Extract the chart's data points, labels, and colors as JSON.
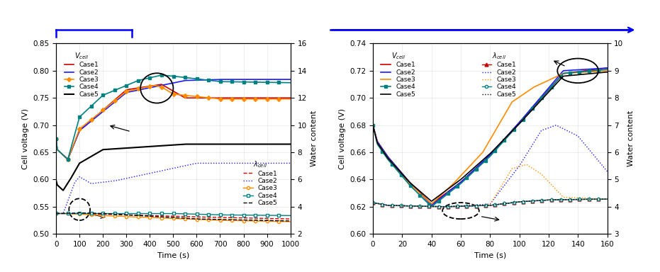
{
  "plot1": {
    "xlim": [
      0,
      1000
    ],
    "ylim_left": [
      0.5,
      0.85
    ],
    "ylim_right": [
      2,
      16
    ],
    "xlabel": "Time (s)",
    "ylabel_left": "Cell voltage (V)",
    "ylabel_right": "Water content",
    "yticks_left": [
      0.5,
      0.55,
      0.6,
      0.65,
      0.7,
      0.75,
      0.8,
      0.85
    ],
    "yticks_right": [
      2,
      4,
      6,
      8,
      10,
      12,
      14,
      16
    ],
    "xticks": [
      0,
      100,
      200,
      300,
      400,
      500,
      600,
      700,
      800,
      900,
      1000
    ],
    "colors": {
      "case1": "#cc0000",
      "case2": "#1a1aff",
      "case3": "#ff8c00",
      "case4": "#008080",
      "case5": "#000000"
    },
    "vcell": {
      "case1_xp": [
        0,
        5,
        50,
        100,
        300,
        450,
        550,
        1000
      ],
      "case1_fp": [
        0.675,
        0.655,
        0.637,
        0.69,
        0.765,
        0.775,
        0.75,
        0.75
      ],
      "case2_xp": [
        0,
        5,
        50,
        100,
        300,
        550,
        700,
        1000
      ],
      "case2_fp": [
        0.675,
        0.655,
        0.637,
        0.69,
        0.76,
        0.782,
        0.784,
        0.784
      ],
      "case3_xp": [
        0,
        5,
        50,
        100,
        300,
        420,
        450,
        500,
        700,
        1000
      ],
      "case3_fp": [
        0.675,
        0.655,
        0.637,
        0.693,
        0.762,
        0.773,
        0.77,
        0.757,
        0.748,
        0.748
      ],
      "case4_xp": [
        0,
        5,
        50,
        100,
        200,
        350,
        450,
        500,
        700,
        1000
      ],
      "case4_fp": [
        0.675,
        0.655,
        0.637,
        0.715,
        0.755,
        0.782,
        0.792,
        0.79,
        0.78,
        0.778
      ],
      "case5_xp": [
        0,
        5,
        30,
        60,
        100,
        200,
        550,
        600,
        1000
      ],
      "case5_fp": [
        0.598,
        0.59,
        0.58,
        0.6,
        0.63,
        0.655,
        0.665,
        0.665,
        0.665
      ]
    },
    "lambda": {
      "case1_xp": [
        0,
        50,
        100,
        200,
        400,
        600,
        1000
      ],
      "case1_fp": [
        3.5,
        3.5,
        3.5,
        3.45,
        3.35,
        3.25,
        3.1
      ],
      "case2_xp": [
        0,
        30,
        80,
        100,
        150,
        250,
        600,
        1000
      ],
      "case2_fp": [
        3.5,
        3.5,
        5.8,
        6.2,
        5.7,
        5.9,
        7.2,
        7.2
      ],
      "case3_xp": [
        0,
        50,
        100,
        200,
        400,
        700,
        1000
      ],
      "case3_fp": [
        3.5,
        3.5,
        3.45,
        3.35,
        3.2,
        3.0,
        2.9
      ],
      "case4_xp": [
        0,
        50,
        100,
        300,
        500,
        700,
        1000
      ],
      "case4_fp": [
        3.5,
        3.5,
        3.5,
        3.5,
        3.5,
        3.4,
        3.35
      ],
      "case5_xp": [
        0,
        50,
        100,
        200,
        400,
        600,
        1000
      ],
      "case5_fp": [
        3.5,
        3.5,
        3.55,
        3.5,
        3.3,
        3.1,
        2.95
      ]
    }
  },
  "plot2": {
    "xlim": [
      0,
      160
    ],
    "ylim_left": [
      0.6,
      0.74
    ],
    "ylim_right": [
      3,
      10
    ],
    "xlabel": "Time (s)",
    "ylabel_left": "Cell voltage (V)",
    "ylabel_right": "Water content",
    "yticks_left": [
      0.6,
      0.62,
      0.64,
      0.66,
      0.68,
      0.7,
      0.72,
      0.74
    ],
    "yticks_right": [
      3,
      4,
      5,
      6,
      7,
      8,
      9,
      10
    ],
    "xticks": [
      0,
      20,
      40,
      60,
      80,
      100,
      120,
      140,
      160
    ],
    "colors": {
      "case1": "#cc0000",
      "case2": "#1a1aff",
      "case3": "#ff8c00",
      "case4": "#008080",
      "case5": "#000000"
    },
    "vcell": {
      "case1_xp": [
        0,
        3,
        10,
        25,
        40,
        60,
        80,
        100,
        130,
        160
      ],
      "case1_fp": [
        0.68,
        0.668,
        0.657,
        0.638,
        0.622,
        0.638,
        0.658,
        0.682,
        0.718,
        0.722
      ],
      "case2_xp": [
        0,
        3,
        10,
        25,
        40,
        60,
        80,
        100,
        130,
        160
      ],
      "case2_fp": [
        0.68,
        0.668,
        0.657,
        0.638,
        0.621,
        0.638,
        0.658,
        0.682,
        0.72,
        0.722
      ],
      "case3_xp": [
        0,
        3,
        10,
        25,
        40,
        55,
        75,
        95,
        110,
        130,
        160
      ],
      "case3_fp": [
        0.68,
        0.667,
        0.656,
        0.637,
        0.622,
        0.637,
        0.66,
        0.697,
        0.708,
        0.718,
        0.72
      ],
      "case4_xp": [
        0,
        3,
        10,
        25,
        40,
        60,
        80,
        100,
        130,
        160
      ],
      "case4_fp": [
        0.68,
        0.666,
        0.655,
        0.636,
        0.62,
        0.637,
        0.657,
        0.681,
        0.718,
        0.721
      ],
      "case5_xp": [
        0,
        3,
        10,
        25,
        40,
        60,
        80,
        100,
        130,
        160
      ],
      "case5_fp": [
        0.68,
        0.667,
        0.656,
        0.638,
        0.624,
        0.64,
        0.659,
        0.681,
        0.716,
        0.719
      ]
    },
    "lambda": {
      "case1_xp": [
        0,
        10,
        30,
        50,
        80,
        100,
        120,
        140,
        160
      ],
      "case1_fp": [
        4.15,
        4.05,
        4.02,
        4.0,
        4.05,
        4.18,
        4.25,
        4.27,
        4.28
      ],
      "case2_xp": [
        0,
        10,
        30,
        50,
        80,
        100,
        115,
        125,
        140,
        160
      ],
      "case2_fp": [
        4.15,
        4.05,
        4.02,
        4.0,
        4.1,
        5.5,
        6.8,
        7.0,
        6.6,
        5.3
      ],
      "case3_xp": [
        0,
        10,
        30,
        50,
        80,
        95,
        105,
        115,
        130,
        160
      ],
      "case3_fp": [
        4.15,
        4.05,
        4.02,
        4.0,
        4.08,
        5.4,
        5.55,
        5.2,
        4.35,
        4.28
      ],
      "case4_xp": [
        0,
        10,
        30,
        50,
        80,
        100,
        120,
        140,
        160
      ],
      "case4_fp": [
        4.15,
        4.05,
        4.02,
        4.0,
        4.05,
        4.18,
        4.25,
        4.27,
        4.28
      ],
      "case5_xp": [
        0,
        10,
        30,
        50,
        80,
        100,
        120,
        140,
        160
      ],
      "case5_fp": [
        4.15,
        4.05,
        4.02,
        4.0,
        4.05,
        4.18,
        4.25,
        4.27,
        4.28
      ]
    }
  }
}
